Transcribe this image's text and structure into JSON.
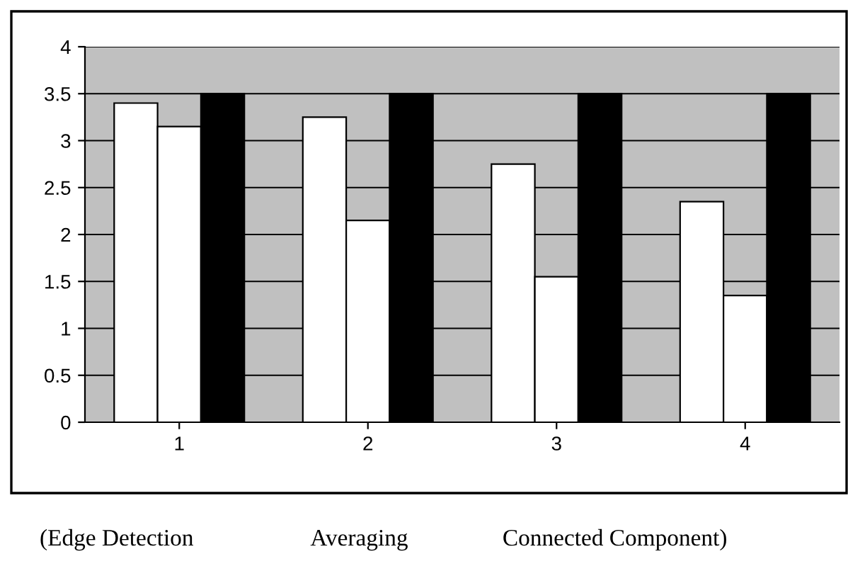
{
  "chart_data": {
    "type": "bar",
    "categories": [
      "1",
      "2",
      "3",
      "4"
    ],
    "series": [
      {
        "colors": [
          "#ffffff",
          "#ffffff",
          "#ffffff",
          "#ffffff"
        ],
        "values": [
          3.4,
          3.25,
          2.75,
          2.35
        ]
      },
      {
        "colors": [
          "#ffffff",
          "#ffffff",
          "#ffffff",
          "#ffffff"
        ],
        "values": [
          3.15,
          2.15,
          1.55,
          1.35
        ]
      },
      {
        "color": "#000000",
        "values": [
          3.5,
          3.5,
          3.5,
          3.5
        ]
      }
    ],
    "ylim": [
      0,
      4
    ],
    "yticks": [
      0,
      0.5,
      1,
      1.5,
      2,
      2.5,
      3,
      3.5,
      4
    ],
    "grid": "y",
    "legend": false,
    "annotations": [
      "(Edge Detection                    Averaging                Connected Component)"
    ]
  }
}
